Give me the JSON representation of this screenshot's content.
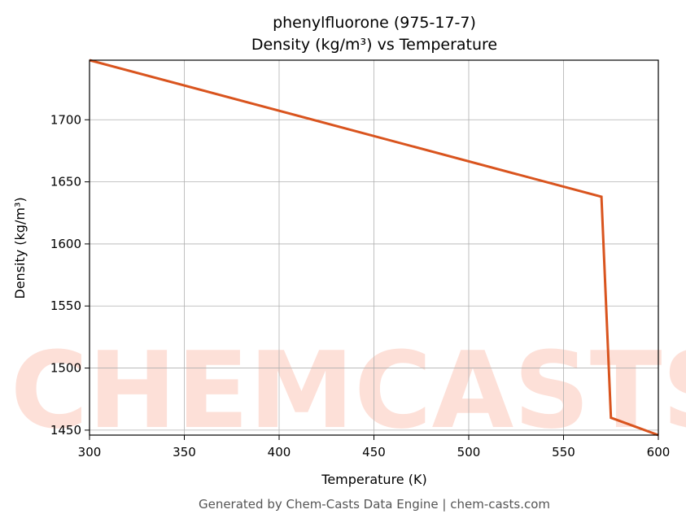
{
  "chart_data": {
    "type": "line",
    "title": "phenylfluorone (975-17-7)",
    "subtitle": "Density (kg/m³) vs Temperature",
    "x_label": "Temperature (K)",
    "y_label": "Density (kg/m³)",
    "footer": "Generated by Chem-Casts Data Engine | chem-casts.com",
    "watermark": "CHEMCASTS",
    "x": [
      300,
      570,
      575,
      600
    ],
    "series": [
      {
        "name": "Density",
        "color": "#d9541e",
        "values": [
          1748,
          1638,
          1460,
          1446
        ]
      }
    ],
    "xlim": [
      300,
      600
    ],
    "xticks": [
      300,
      350,
      400,
      450,
      500,
      550,
      600
    ],
    "ylim": [
      1446,
      1748
    ],
    "yticks": [
      1450,
      1500,
      1550,
      1600,
      1650,
      1700
    ],
    "grid": true
  }
}
